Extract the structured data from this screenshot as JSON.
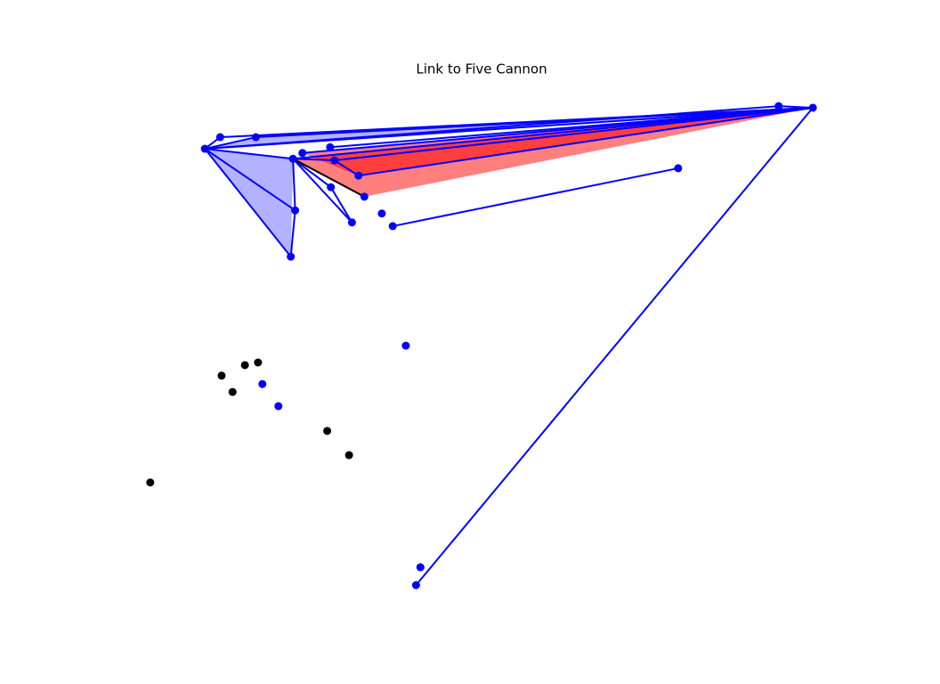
{
  "chart_data": {
    "type": "network",
    "title": "Link to Five Cannon",
    "xlim": [
      0,
      100
    ],
    "ylim": [
      0,
      100
    ],
    "nodes": [
      {
        "x": 12.0,
        "y": 87.3,
        "color": "#0000ff"
      },
      {
        "x": 14.1,
        "y": 89.5,
        "color": "#0000ff"
      },
      {
        "x": 19.0,
        "y": 89.5,
        "color": "#0000ff"
      },
      {
        "x": 29.2,
        "y": 87.6,
        "color": "#0000ff"
      },
      {
        "x": 24.1,
        "y": 85.4,
        "color": "#0000ff"
      },
      {
        "x": 25.4,
        "y": 86.5,
        "color": "#0000ff"
      },
      {
        "x": 29.8,
        "y": 85.1,
        "color": "#0000ff"
      },
      {
        "x": 33.1,
        "y": 82.2,
        "color": "#0000ff"
      },
      {
        "x": 33.9,
        "y": 78.2,
        "color": "#0000ff"
      },
      {
        "x": 29.3,
        "y": 80.0,
        "color": "#0000ff"
      },
      {
        "x": 32.2,
        "y": 73.3,
        "color": "#0000ff"
      },
      {
        "x": 36.3,
        "y": 75.0,
        "color": "#0000ff"
      },
      {
        "x": 37.8,
        "y": 72.6,
        "color": "#0000ff"
      },
      {
        "x": 24.4,
        "y": 75.6,
        "color": "#0000ff"
      },
      {
        "x": 23.8,
        "y": 66.8,
        "color": "#0000ff"
      },
      {
        "x": 77.0,
        "y": 83.6,
        "color": "#0000ff"
      },
      {
        "x": 90.8,
        "y": 95.4,
        "color": "#0000ff"
      },
      {
        "x": 95.5,
        "y": 95.1,
        "color": "#0000ff"
      },
      {
        "x": 39.6,
        "y": 49.9,
        "color": "#0000ff"
      },
      {
        "x": 19.9,
        "y": 42.6,
        "color": "#0000ff"
      },
      {
        "x": 22.1,
        "y": 38.4,
        "color": "#0000ff"
      },
      {
        "x": 41.6,
        "y": 7.8,
        "color": "#0000ff"
      },
      {
        "x": 41.0,
        "y": 4.4,
        "color": "#0000ff"
      },
      {
        "x": 14.3,
        "y": 44.2,
        "color": "#000000"
      },
      {
        "x": 17.5,
        "y": 46.2,
        "color": "#000000"
      },
      {
        "x": 19.3,
        "y": 46.7,
        "color": "#000000"
      },
      {
        "x": 15.8,
        "y": 41.1,
        "color": "#000000"
      },
      {
        "x": 28.8,
        "y": 33.7,
        "color": "#000000"
      },
      {
        "x": 31.8,
        "y": 29.1,
        "color": "#000000"
      },
      {
        "x": 4.5,
        "y": 23.9,
        "color": "#000000"
      }
    ],
    "fields": [
      {
        "nodes": [
          0,
          2,
          17
        ],
        "color": "#6666ff"
      },
      {
        "nodes": [
          0,
          4,
          14
        ],
        "color": "#6666ff"
      },
      {
        "nodes": [
          4,
          8,
          17
        ],
        "color": "#ff0000"
      },
      {
        "nodes": [
          5,
          7,
          17
        ],
        "color": "#ff0000"
      }
    ],
    "links": [
      {
        "nodes": [
          0,
          1
        ],
        "color": "#0000ff"
      },
      {
        "nodes": [
          0,
          2
        ],
        "color": "#0000ff"
      },
      {
        "nodes": [
          0,
          4
        ],
        "color": "#0000ff"
      },
      {
        "nodes": [
          0,
          13
        ],
        "color": "#0000ff"
      },
      {
        "nodes": [
          0,
          14
        ],
        "color": "#0000ff"
      },
      {
        "nodes": [
          13,
          14
        ],
        "color": "#0000ff"
      },
      {
        "nodes": [
          4,
          13
        ],
        "color": "#0000ff"
      },
      {
        "nodes": [
          0,
          17
        ],
        "color": "#0000ff"
      },
      {
        "nodes": [
          0,
          16
        ],
        "color": "#0000ff"
      },
      {
        "nodes": [
          1,
          17
        ],
        "color": "#0000ff"
      },
      {
        "nodes": [
          2,
          17
        ],
        "color": "#0000ff"
      },
      {
        "nodes": [
          3,
          17
        ],
        "color": "#0000ff"
      },
      {
        "nodes": [
          4,
          17
        ],
        "color": "#0000ff"
      },
      {
        "nodes": [
          5,
          17
        ],
        "color": "#0000ff"
      },
      {
        "nodes": [
          6,
          17
        ],
        "color": "#0000ff"
      },
      {
        "nodes": [
          7,
          17
        ],
        "color": "#0000ff"
      },
      {
        "nodes": [
          6,
          7
        ],
        "color": "#0000ff"
      },
      {
        "nodes": [
          4,
          6
        ],
        "color": "#0000ff"
      },
      {
        "nodes": [
          4,
          10
        ],
        "color": "#0000ff"
      },
      {
        "nodes": [
          9,
          10
        ],
        "color": "#0000ff"
      },
      {
        "nodes": [
          4,
          9
        ],
        "color": "#0000ff"
      },
      {
        "nodes": [
          12,
          15
        ],
        "color": "#0000ff"
      },
      {
        "nodes": [
          16,
          17
        ],
        "color": "#0000ff"
      },
      {
        "nodes": [
          17,
          22
        ],
        "color": "#0000ff"
      },
      {
        "nodes": [
          4,
          8
        ],
        "color": "#000000"
      }
    ]
  }
}
